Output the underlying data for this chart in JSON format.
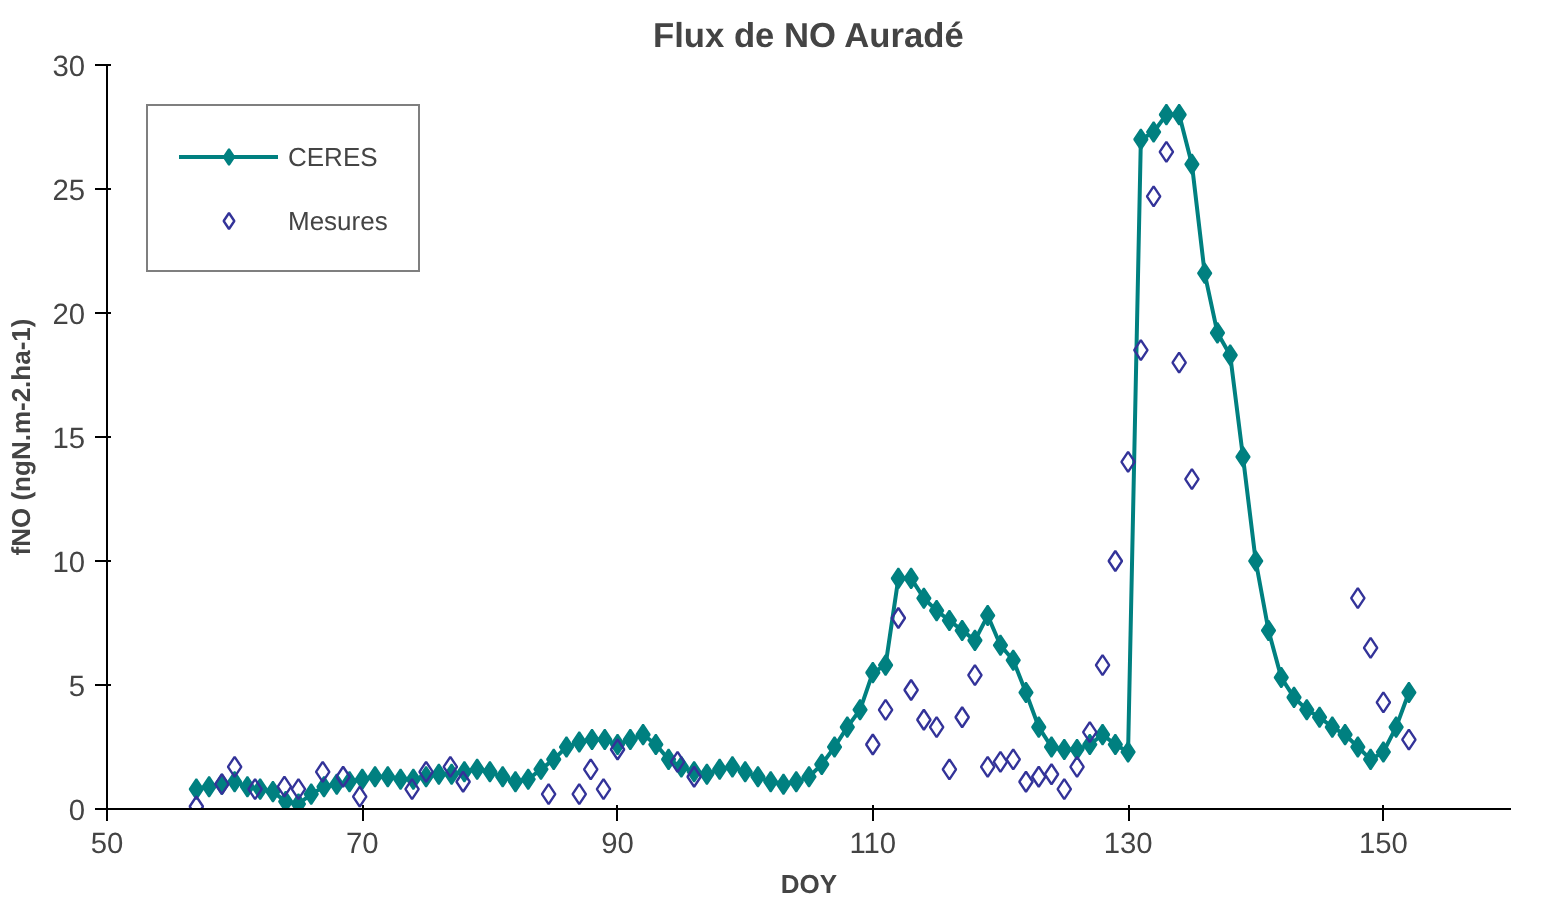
{
  "chart_data": {
    "type": "line",
    "title": "Flux de NO Auradé",
    "xlabel": "DOY",
    "ylabel": "fNO (ngN.m-2.ha-1)",
    "xlim": [
      50,
      160
    ],
    "xticks": [
      50,
      70,
      90,
      110,
      130,
      150
    ],
    "ylim": [
      0,
      30
    ],
    "yticks": [
      0,
      5,
      10,
      15,
      20,
      25,
      30
    ],
    "grid": false,
    "legend": "top left",
    "series": [
      {
        "name": "CERES",
        "color": "#008080",
        "marker": "diamond",
        "line_style": "solid",
        "x": [
          57,
          58,
          59,
          60,
          61,
          62,
          63,
          64,
          65,
          66,
          67,
          68,
          69,
          70,
          71,
          72,
          73,
          74,
          75,
          76,
          77,
          78,
          79,
          80,
          81,
          82,
          83,
          84,
          85,
          86,
          87,
          88,
          89,
          90,
          91,
          92,
          93,
          94,
          95,
          96,
          97,
          98,
          99,
          100,
          101,
          102,
          103,
          104,
          105,
          106,
          107,
          108,
          109,
          110,
          111,
          112,
          113,
          114,
          115,
          116,
          117,
          118,
          119,
          120,
          121,
          122,
          123,
          124,
          125,
          126,
          127,
          128,
          129,
          130,
          131,
          132,
          133,
          134,
          135,
          136,
          137,
          138,
          139,
          140,
          141,
          142,
          143,
          144,
          145,
          146,
          147,
          148,
          149,
          150,
          151,
          152
        ],
        "values": [
          0.8,
          0.9,
          1.0,
          1.1,
          0.9,
          0.8,
          0.7,
          0.3,
          0.2,
          0.6,
          0.9,
          1.0,
          1.1,
          1.2,
          1.3,
          1.3,
          1.2,
          1.2,
          1.3,
          1.4,
          1.4,
          1.5,
          1.6,
          1.5,
          1.3,
          1.1,
          1.2,
          1.6,
          2.0,
          2.5,
          2.7,
          2.8,
          2.8,
          2.6,
          2.8,
          3.0,
          2.6,
          2.0,
          1.7,
          1.5,
          1.4,
          1.6,
          1.7,
          1.5,
          1.3,
          1.1,
          1.0,
          1.1,
          1.3,
          1.8,
          2.5,
          3.3,
          4.0,
          5.5,
          5.8,
          9.3,
          9.3,
          8.5,
          8.0,
          7.6,
          7.2,
          6.8,
          7.8,
          6.6,
          6.0,
          4.7,
          3.3,
          2.5,
          2.4,
          2.4,
          2.6,
          3.0,
          2.6,
          2.3,
          27.0,
          27.3,
          28.0,
          28.0,
          26.0,
          21.6,
          19.2,
          18.3,
          14.2,
          10.0,
          7.2,
          5.3,
          4.5,
          4.0,
          3.7,
          3.3,
          3.0,
          2.5,
          2.0,
          2.3,
          3.3,
          4.7
        ]
      },
      {
        "name": "Mesures",
        "type": "scatter",
        "color": "#333399",
        "marker": "diamond",
        "x": [
          57,
          59,
          60,
          61.6,
          63.9,
          65,
          66.9,
          68.5,
          69.8,
          73.9,
          75,
          76.9,
          77.9,
          84.6,
          87,
          87.9,
          88.9,
          90,
          94.7,
          96,
          110,
          111,
          112,
          113,
          114,
          115,
          116,
          117,
          118,
          119,
          120,
          121,
          122,
          123,
          124,
          125,
          126,
          127,
          128,
          129,
          130,
          131,
          132,
          133,
          134,
          135,
          148,
          149,
          150,
          152
        ],
        "values": [
          0.1,
          1.0,
          1.7,
          0.8,
          0.9,
          0.8,
          1.5,
          1.3,
          0.5,
          0.8,
          1.5,
          1.7,
          1.1,
          0.6,
          0.6,
          1.6,
          0.8,
          2.4,
          1.9,
          1.3,
          2.6,
          4.0,
          7.7,
          4.8,
          3.6,
          3.3,
          1.6,
          3.7,
          5.4,
          1.7,
          1.9,
          2.0,
          1.1,
          1.3,
          1.4,
          0.8,
          1.7,
          3.1,
          5.8,
          10.0,
          14.0,
          18.5,
          24.7,
          26.5,
          18.0,
          13.3,
          8.5,
          6.5,
          4.3,
          2.8
        ]
      }
    ]
  }
}
